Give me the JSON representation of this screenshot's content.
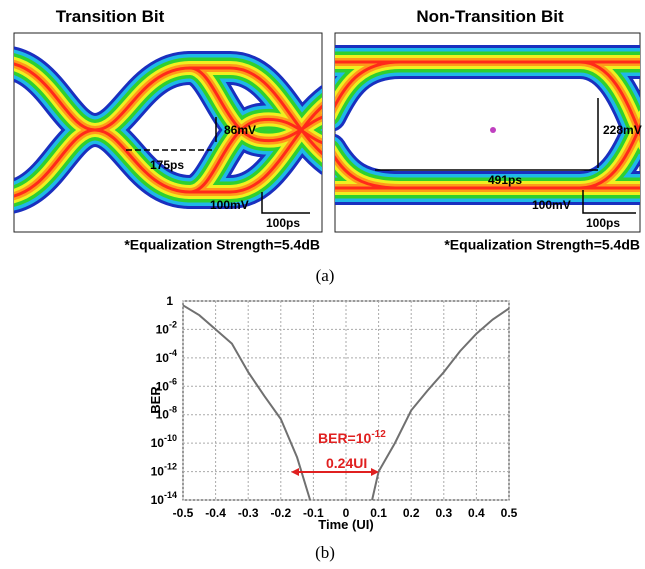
{
  "panel_a": {
    "caption": "(a)",
    "eyes": [
      {
        "title": "Transition Bit",
        "height_label": "86mV",
        "width_label": "175ps",
        "scale_v": "100mV",
        "scale_h": "100ps",
        "note": "*Equalization Strength=5.4dB"
      },
      {
        "title": "Non-Transition Bit",
        "height_label": "228mV",
        "width_label": "491ps",
        "scale_v": "100mV",
        "scale_h": "100ps",
        "note": "*Equalization Strength=5.4dB"
      }
    ]
  },
  "chart_data": {
    "type": "line",
    "caption": "(b)",
    "xlabel": "Time (UI)",
    "ylabel": "BER",
    "log_y": true,
    "grid": true,
    "color": "#707070",
    "x": [
      -0.5,
      -0.45,
      -0.4,
      -0.35,
      -0.3,
      -0.25,
      -0.2,
      -0.15,
      -0.11,
      0,
      0.08,
      0.1,
      0.15,
      0.2,
      0.25,
      0.3,
      0.35,
      0.4,
      0.45,
      0.5
    ],
    "values": [
      0.5,
      0.1,
      0.01,
      0.001,
      1e-05,
      2e-07,
      5e-09,
      1e-11,
      1e-14,
      null,
      1e-14,
      1e-12,
      1e-10,
      2e-08,
      5e-07,
      1e-05,
      0.0003,
      0.005,
      0.05,
      0.3
    ],
    "xlim": [
      -0.5,
      0.5
    ],
    "ylim": [
      1e-14,
      1
    ],
    "xticks": [
      -0.5,
      -0.4,
      -0.3,
      -0.2,
      -0.1,
      0,
      0.1,
      0.2,
      0.3,
      0.4,
      0.5
    ],
    "yticks": [
      1,
      {
        "value": 0.01,
        "label": "10",
        "sup": "-2"
      },
      {
        "value": 0.0001,
        "label": "10",
        "sup": "-4"
      },
      {
        "value": 1e-06,
        "label": "10",
        "sup": "-6"
      },
      {
        "value": 1e-08,
        "label": "10",
        "sup": "-8"
      },
      {
        "value": 1e-10,
        "label": "10",
        "sup": "-10"
      },
      {
        "value": 1e-12,
        "label": "10",
        "sup": "-12"
      },
      {
        "value": 1e-14,
        "label": "10",
        "sup": "-14"
      }
    ],
    "annotations": [
      {
        "text": "BER=10",
        "sup": "-12"
      },
      {
        "text": "0.24UI"
      }
    ]
  }
}
